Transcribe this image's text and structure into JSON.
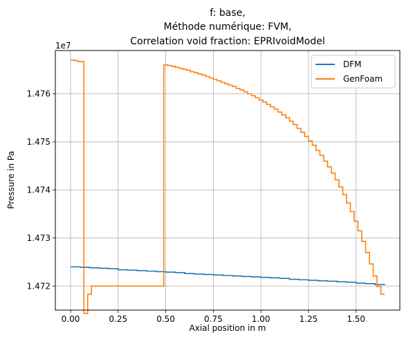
{
  "chart_data": {
    "type": "line",
    "title_lines": [
      "f: base,",
      "Méthode numérique: FVM,",
      "Correlation void fraction: EPRIvoidModel"
    ],
    "xlabel": "Axial position in m",
    "ylabel": "Pressure in Pa",
    "offset_label": "1e7",
    "xlim": [
      -0.08,
      1.73
    ],
    "ylim": [
      14715000,
      14769000
    ],
    "x_ticks": [
      0.0,
      0.25,
      0.5,
      0.75,
      1.0,
      1.25,
      1.5
    ],
    "x_tick_labels": [
      "0.00",
      "0.25",
      "0.50",
      "0.75",
      "1.00",
      "1.25",
      "1.50"
    ],
    "y_ticks": [
      14720000,
      14730000,
      14740000,
      14750000,
      14760000
    ],
    "y_tick_labels": [
      "1.472",
      "1.473",
      "1.474",
      "1.475",
      "1.476"
    ],
    "grid": true,
    "legend_position": "upper right",
    "series": [
      {
        "name": "DFM",
        "color": "#1f77b4",
        "step": true,
        "x": [
          0.0,
          0.05,
          0.1,
          0.15,
          0.2,
          0.25,
          0.3,
          0.35,
          0.4,
          0.45,
          0.5,
          0.55,
          0.6,
          0.65,
          0.7,
          0.75,
          0.8,
          0.85,
          0.9,
          0.95,
          1.0,
          1.05,
          1.1,
          1.15,
          1.2,
          1.25,
          1.3,
          1.35,
          1.4,
          1.45,
          1.5,
          1.55,
          1.6,
          1.65
        ],
        "y": [
          14724000,
          14723900,
          14723800,
          14723700,
          14723600,
          14723400,
          14723300,
          14723200,
          14723100,
          14723000,
          14722900,
          14722800,
          14722600,
          14722500,
          14722400,
          14722300,
          14722200,
          14722100,
          14722000,
          14721900,
          14721800,
          14721700,
          14721600,
          14721400,
          14721300,
          14721200,
          14721100,
          14721000,
          14720900,
          14720800,
          14720600,
          14720500,
          14720300,
          14720200
        ]
      },
      {
        "name": "GenFoam",
        "color": "#ff7f0e",
        "step": true,
        "x": [
          0.0,
          0.02,
          0.04,
          0.07,
          0.09,
          0.11,
          0.49,
          0.51,
          0.53,
          0.55,
          0.57,
          0.59,
          0.61,
          0.63,
          0.65,
          0.67,
          0.69,
          0.71,
          0.73,
          0.75,
          0.77,
          0.79,
          0.81,
          0.83,
          0.85,
          0.87,
          0.89,
          0.91,
          0.93,
          0.95,
          0.97,
          0.99,
          1.01,
          1.03,
          1.05,
          1.07,
          1.09,
          1.11,
          1.13,
          1.15,
          1.17,
          1.19,
          1.21,
          1.23,
          1.25,
          1.27,
          1.29,
          1.31,
          1.33,
          1.35,
          1.37,
          1.39,
          1.41,
          1.43,
          1.45,
          1.47,
          1.49,
          1.51,
          1.53,
          1.55,
          1.57,
          1.59,
          1.61,
          1.63,
          1.65
        ],
        "y": [
          14767000,
          14766900,
          14766700,
          14714300,
          14718300,
          14720000,
          14766000,
          14765900,
          14765700,
          14765500,
          14765300,
          14765100,
          14764900,
          14764600,
          14764400,
          14764100,
          14763900,
          14763600,
          14763300,
          14763000,
          14762700,
          14762400,
          14762100,
          14761800,
          14761500,
          14761100,
          14760800,
          14760400,
          14760000,
          14759600,
          14759200,
          14758700,
          14758300,
          14757800,
          14757300,
          14756800,
          14756200,
          14755600,
          14755000,
          14754300,
          14753600,
          14752800,
          14752000,
          14751100,
          14750200,
          14749300,
          14748200,
          14747200,
          14746000,
          14744800,
          14743500,
          14742100,
          14740600,
          14739000,
          14737300,
          14735500,
          14733500,
          14731500,
          14729300,
          14727000,
          14724600,
          14722100,
          14719900,
          14718300,
          14718300
        ]
      }
    ]
  }
}
